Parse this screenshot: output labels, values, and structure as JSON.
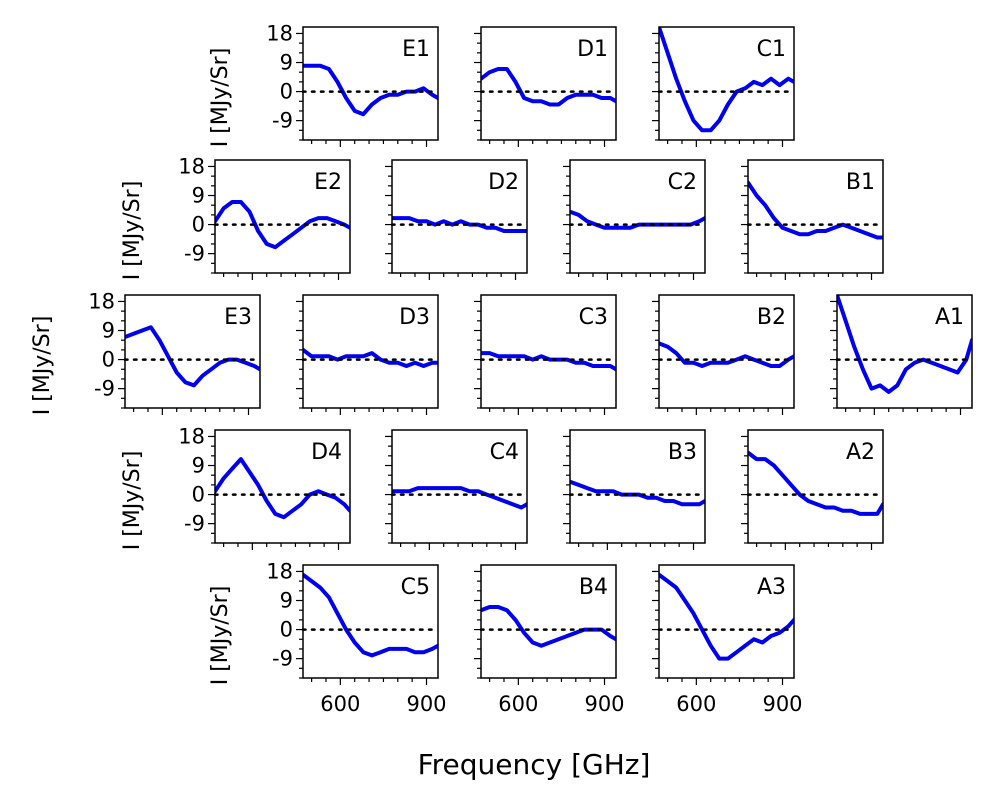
{
  "chart_data": {
    "type": "line",
    "xlabel": "Frequency [GHz]",
    "ylabel": "I [MJy/Sr]",
    "xlim": [
      470,
      940
    ],
    "ylim": [
      -15,
      20
    ],
    "x_ticks": [
      600,
      900
    ],
    "y_ticks": [
      18,
      9,
      0,
      -9
    ],
    "reference_line": 0,
    "series_color": "#0000ee",
    "panels": [
      {
        "name": "E1",
        "x": [
          470,
          500,
          530,
          560,
          590,
          620,
          650,
          680,
          710,
          740,
          770,
          800,
          830,
          860,
          890,
          920,
          940
        ],
        "y": [
          8,
          8,
          8,
          7,
          3,
          -2,
          -6,
          -7,
          -4,
          -2,
          -1,
          -1,
          0,
          0,
          1,
          -1,
          -2
        ]
      },
      {
        "name": "D1",
        "x": [
          470,
          500,
          530,
          560,
          590,
          620,
          650,
          680,
          710,
          740,
          770,
          800,
          830,
          860,
          890,
          920,
          940
        ],
        "y": [
          4,
          6,
          7,
          7,
          3,
          -2,
          -3,
          -3,
          -4,
          -4,
          -2,
          -1,
          -1,
          -1,
          -2,
          -2,
          -3
        ]
      },
      {
        "name": "C1",
        "x": [
          470,
          500,
          530,
          560,
          590,
          620,
          650,
          680,
          710,
          740,
          770,
          800,
          830,
          860,
          890,
          920,
          940
        ],
        "y": [
          20,
          12,
          4,
          -3,
          -9,
          -12,
          -12,
          -9,
          -4,
          0,
          1,
          3,
          2,
          4,
          2,
          4,
          3
        ]
      },
      {
        "name": "E2",
        "x": [
          470,
          500,
          530,
          560,
          590,
          620,
          650,
          680,
          710,
          740,
          770,
          800,
          830,
          860,
          890,
          920,
          940
        ],
        "y": [
          1,
          5,
          7,
          7,
          4,
          -2,
          -6,
          -7,
          -5,
          -3,
          -1,
          1,
          2,
          2,
          1,
          0,
          -1
        ]
      },
      {
        "name": "D2",
        "x": [
          470,
          500,
          530,
          560,
          590,
          620,
          650,
          680,
          710,
          740,
          770,
          800,
          830,
          860,
          890,
          920,
          940
        ],
        "y": [
          2,
          2,
          2,
          1,
          1,
          0,
          1,
          0,
          1,
          0,
          0,
          -1,
          -1,
          -2,
          -2,
          -2,
          -2
        ]
      },
      {
        "name": "C2",
        "x": [
          470,
          500,
          530,
          560,
          590,
          620,
          650,
          680,
          710,
          740,
          770,
          800,
          830,
          860,
          890,
          920,
          940
        ],
        "y": [
          4,
          3,
          1,
          0,
          -1,
          -1,
          -1,
          -1,
          0,
          0,
          0,
          0,
          0,
          0,
          0,
          1,
          2
        ]
      },
      {
        "name": "B1",
        "x": [
          470,
          500,
          530,
          560,
          590,
          620,
          650,
          680,
          710,
          740,
          770,
          800,
          830,
          860,
          890,
          920,
          940
        ],
        "y": [
          13,
          9,
          6,
          2,
          -1,
          -2,
          -3,
          -3,
          -2,
          -2,
          -1,
          0,
          -1,
          -2,
          -3,
          -4,
          -4
        ]
      },
      {
        "name": "E3",
        "x": [
          470,
          500,
          530,
          560,
          590,
          620,
          650,
          680,
          710,
          740,
          770,
          800,
          830,
          860,
          890,
          920,
          940
        ],
        "y": [
          7,
          8,
          9,
          10,
          6,
          1,
          -4,
          -7,
          -8,
          -5,
          -3,
          -1,
          0,
          0,
          -1,
          -2,
          -3
        ]
      },
      {
        "name": "D3",
        "x": [
          470,
          500,
          530,
          560,
          590,
          620,
          650,
          680,
          710,
          740,
          770,
          800,
          830,
          860,
          890,
          920,
          940
        ],
        "y": [
          3,
          1,
          1,
          1,
          0,
          1,
          1,
          1,
          2,
          0,
          -1,
          -1,
          -2,
          -1,
          -2,
          -1,
          -1
        ]
      },
      {
        "name": "C3",
        "x": [
          470,
          500,
          530,
          560,
          590,
          620,
          650,
          680,
          710,
          740,
          770,
          800,
          830,
          860,
          890,
          920,
          940
        ],
        "y": [
          2,
          2,
          1,
          1,
          1,
          1,
          0,
          1,
          0,
          0,
          0,
          -1,
          -1,
          -2,
          -2,
          -2,
          -3
        ]
      },
      {
        "name": "B2",
        "x": [
          470,
          500,
          530,
          560,
          590,
          620,
          650,
          680,
          710,
          740,
          770,
          800,
          830,
          860,
          890,
          920,
          940
        ],
        "y": [
          5,
          4,
          2,
          -1,
          -1,
          -2,
          -1,
          -1,
          -1,
          0,
          1,
          0,
          -1,
          -2,
          -2,
          0,
          1
        ]
      },
      {
        "name": "A1",
        "x": [
          470,
          500,
          530,
          560,
          590,
          620,
          650,
          680,
          710,
          740,
          770,
          800,
          830,
          860,
          890,
          920,
          940
        ],
        "y": [
          20,
          12,
          4,
          -3,
          -9,
          -8,
          -10,
          -8,
          -3,
          -1,
          0,
          -1,
          -2,
          -3,
          -4,
          0,
          6
        ]
      },
      {
        "name": "D4",
        "x": [
          470,
          500,
          530,
          560,
          590,
          620,
          650,
          680,
          710,
          740,
          770,
          800,
          830,
          860,
          890,
          920,
          940
        ],
        "y": [
          1,
          5,
          8,
          11,
          7,
          3,
          -2,
          -6,
          -7,
          -5,
          -3,
          0,
          1,
          0,
          -1,
          -3,
          -5
        ]
      },
      {
        "name": "C4",
        "x": [
          470,
          500,
          530,
          560,
          590,
          620,
          650,
          680,
          710,
          740,
          770,
          800,
          830,
          860,
          890,
          920,
          940
        ],
        "y": [
          1,
          1,
          1,
          2,
          2,
          2,
          2,
          2,
          2,
          1,
          1,
          0,
          -1,
          -2,
          -3,
          -4,
          -3
        ]
      },
      {
        "name": "B3",
        "x": [
          470,
          500,
          530,
          560,
          590,
          620,
          650,
          680,
          710,
          740,
          770,
          800,
          830,
          860,
          890,
          920,
          940
        ],
        "y": [
          4,
          3,
          2,
          1,
          1,
          1,
          0,
          0,
          0,
          -1,
          -1,
          -2,
          -2,
          -3,
          -3,
          -3,
          -2
        ]
      },
      {
        "name": "A2",
        "x": [
          470,
          500,
          530,
          560,
          590,
          620,
          650,
          680,
          710,
          740,
          770,
          800,
          830,
          860,
          890,
          920,
          940
        ],
        "y": [
          13,
          11,
          11,
          9,
          6,
          3,
          0,
          -2,
          -3,
          -4,
          -4,
          -5,
          -5,
          -6,
          -6,
          -6,
          -3
        ]
      },
      {
        "name": "C5",
        "x": [
          470,
          500,
          530,
          560,
          590,
          620,
          650,
          680,
          710,
          740,
          770,
          800,
          830,
          860,
          890,
          920,
          940
        ],
        "y": [
          17,
          15,
          13,
          10,
          5,
          0,
          -4,
          -7,
          -8,
          -7,
          -6,
          -6,
          -6,
          -7,
          -7,
          -6,
          -5
        ]
      },
      {
        "name": "B4",
        "x": [
          470,
          500,
          530,
          560,
          590,
          620,
          650,
          680,
          710,
          740,
          770,
          800,
          830,
          860,
          890,
          920,
          940
        ],
        "y": [
          6,
          7,
          7,
          6,
          3,
          -1,
          -4,
          -5,
          -4,
          -3,
          -2,
          -1,
          0,
          0,
          0,
          -2,
          -3
        ]
      },
      {
        "name": "A3",
        "x": [
          470,
          500,
          530,
          560,
          590,
          620,
          650,
          680,
          710,
          740,
          770,
          800,
          830,
          860,
          890,
          920,
          940
        ],
        "y": [
          17,
          15,
          13,
          9,
          5,
          0,
          -5,
          -9,
          -9,
          -7,
          -5,
          -3,
          -4,
          -2,
          -1,
          1,
          3
        ]
      }
    ]
  }
}
